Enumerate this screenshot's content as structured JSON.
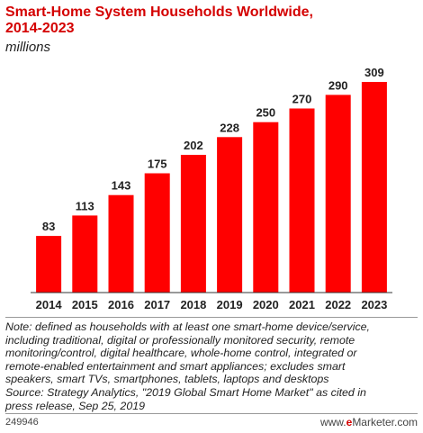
{
  "chart_data": {
    "type": "bar",
    "title_line1": "Smart-Home System Households Worldwide,",
    "title_line2": "2014-2023",
    "subtitle": "millions",
    "categories": [
      "2014",
      "2015",
      "2016",
      "2017",
      "2018",
      "2019",
      "2020",
      "2021",
      "2022",
      "2023"
    ],
    "values": [
      83,
      113,
      143,
      175,
      202,
      228,
      250,
      270,
      290,
      309
    ],
    "ylim": [
      0,
      309
    ],
    "grid": false,
    "bar_color": "#ff0000"
  },
  "note": {
    "lines": [
      "Note: defined as households with at least one smart-home device/service,",
      "including traditional, digital or professionally monitored security, remote",
      "monitoring/control, digital healthcare, whole-home control, integrated or",
      "remote-enabled entertainment and smart appliances; excludes smart",
      "speakers, smart TVs, smartphones, tablets, laptops and desktops",
      "Source: Strategy Analytics, \"2019 Global Smart Home Market\" as cited in",
      "press release, Sep 25, 2019"
    ]
  },
  "footer": {
    "chart_id": "249946",
    "brand_prefix": "www.",
    "brand_e": "e",
    "brand_rest": "Marketer.com"
  }
}
